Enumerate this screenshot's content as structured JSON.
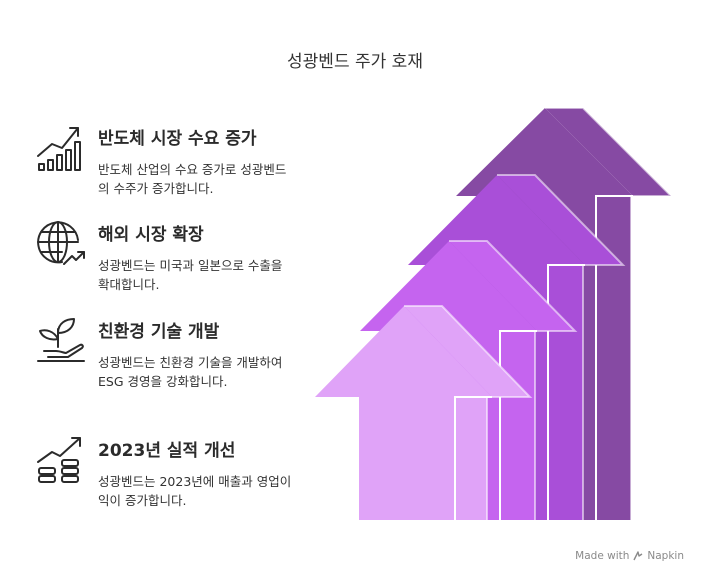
{
  "title": "성광벤드 주가 호재",
  "items": [
    {
      "icon": "chart-bar-trend-icon",
      "heading": "반도체 시장 수요 증가",
      "description": "반도체 산업의 수요 증가로 성광벤드의 수주가 증가합니다."
    },
    {
      "icon": "globe-arrow-icon",
      "heading": "해외 시장 확장",
      "description": "성광벤드는 미국과 일본으로 수출을 확대합니다."
    },
    {
      "icon": "plant-hand-icon",
      "heading": "친환경 기술 개발",
      "description": "성광벤드는 친환경 기술을 개발하여 ESG 경영을 강화합니다."
    },
    {
      "icon": "coins-growth-icon",
      "heading": "2023년 실적 개선",
      "description": "성광벤드는 2023년에 매출과 영업이익이 증가합니다."
    }
  ],
  "arrow_colors": [
    "#e0a3f8",
    "#c564ef",
    "#a94fd8",
    "#864aa3"
  ],
  "footer": {
    "text": "Made with",
    "brand": "Napkin"
  }
}
